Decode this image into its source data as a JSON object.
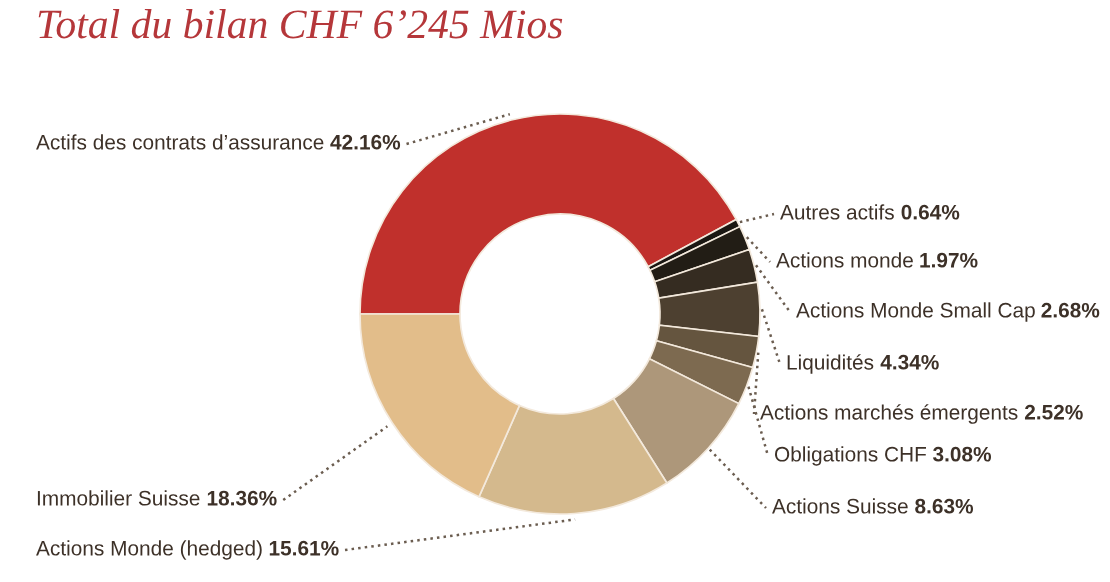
{
  "chart_data": {
    "type": "donut",
    "title": "Total du bilan CHF 6’245 Mios",
    "categories": [
      "Actifs des contrats d’assurance",
      "Autres actifs",
      "Actions monde",
      "Actions Monde Small Cap",
      "Liquidités",
      "Actions marchés émergents",
      "Obligations CHF",
      "Actions Suisse",
      "Actions Monde (hedged)",
      "Immobilier Suisse"
    ],
    "values": [
      42.16,
      0.64,
      1.97,
      2.68,
      4.34,
      2.52,
      3.08,
      8.63,
      15.61,
      18.36
    ],
    "value_labels": [
      "42.16%",
      "0.64%",
      "1.97%",
      "2.68%",
      "4.34%",
      "2.52%",
      "3.08%",
      "8.63%",
      "15.61%",
      "18.36%"
    ],
    "colors": [
      "#c0302c",
      "#1a1712",
      "#221d15",
      "#352c21",
      "#4d4030",
      "#65553f",
      "#7d6a50",
      "#ad977a",
      "#d4b98d",
      "#e2bd8a"
    ]
  }
}
